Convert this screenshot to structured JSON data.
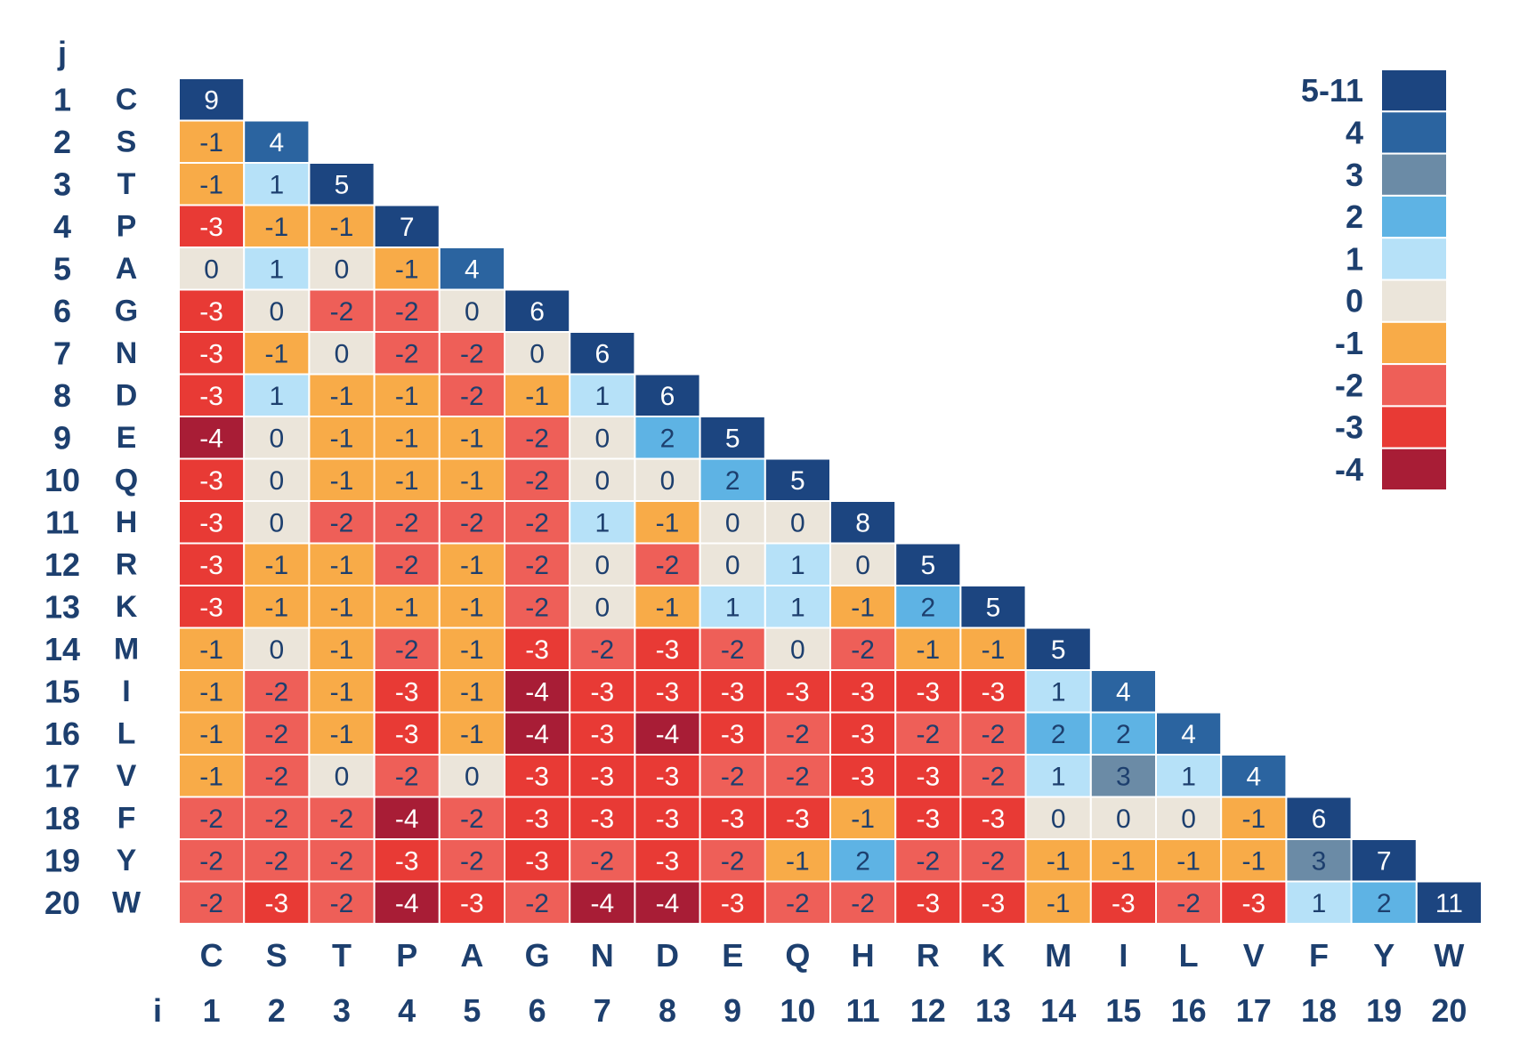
{
  "chart_data": {
    "type": "heatmap",
    "j_axis_title": "j",
    "i_axis_title": "i",
    "amino_acids": [
      "C",
      "S",
      "T",
      "P",
      "A",
      "G",
      "N",
      "D",
      "E",
      "Q",
      "H",
      "R",
      "K",
      "M",
      "I",
      "L",
      "V",
      "F",
      "Y",
      "W"
    ],
    "indices": [
      "1",
      "2",
      "3",
      "4",
      "5",
      "6",
      "7",
      "8",
      "9",
      "10",
      "11",
      "12",
      "13",
      "14",
      "15",
      "16",
      "17",
      "18",
      "19",
      "20"
    ],
    "matrix": [
      [
        9
      ],
      [
        -1,
        4
      ],
      [
        -1,
        1,
        5
      ],
      [
        -3,
        -1,
        -1,
        7
      ],
      [
        0,
        1,
        0,
        -1,
        4
      ],
      [
        -3,
        0,
        -2,
        -2,
        0,
        6
      ],
      [
        -3,
        -1,
        0,
        -2,
        -2,
        0,
        6
      ],
      [
        -3,
        1,
        -1,
        -1,
        -2,
        -1,
        1,
        6
      ],
      [
        -4,
        0,
        -1,
        -1,
        -1,
        -2,
        0,
        2,
        5
      ],
      [
        -3,
        0,
        -1,
        -1,
        -1,
        -2,
        0,
        0,
        2,
        5
      ],
      [
        -3,
        0,
        -2,
        -2,
        -2,
        -2,
        1,
        -1,
        0,
        0,
        8
      ],
      [
        -3,
        -1,
        -1,
        -2,
        -1,
        -2,
        0,
        -2,
        0,
        1,
        0,
        5
      ],
      [
        -3,
        -1,
        -1,
        -1,
        -1,
        -2,
        0,
        -1,
        1,
        1,
        -1,
        2,
        5
      ],
      [
        -1,
        0,
        -1,
        -2,
        -1,
        -3,
        -2,
        -3,
        -2,
        0,
        -2,
        -1,
        -1,
        5
      ],
      [
        -1,
        -2,
        -1,
        -3,
        -1,
        -4,
        -3,
        -3,
        -3,
        -3,
        -3,
        -3,
        -3,
        1,
        4
      ],
      [
        -1,
        -2,
        -1,
        -3,
        -1,
        -4,
        -3,
        -4,
        -3,
        -2,
        -3,
        -2,
        -2,
        2,
        2,
        4
      ],
      [
        -1,
        -2,
        0,
        -2,
        0,
        -3,
        -3,
        -3,
        -2,
        -2,
        -3,
        -3,
        -2,
        1,
        3,
        1,
        4
      ],
      [
        -2,
        -2,
        -2,
        -4,
        -2,
        -3,
        -3,
        -3,
        -3,
        -3,
        -1,
        -3,
        -3,
        0,
        0,
        0,
        -1,
        6
      ],
      [
        -2,
        -2,
        -2,
        -3,
        -2,
        -3,
        -2,
        -3,
        -2,
        -1,
        2,
        -2,
        -2,
        -1,
        -1,
        -1,
        -1,
        3,
        7
      ],
      [
        -2,
        -3,
        -2,
        -4,
        -3,
        -2,
        -4,
        -4,
        -3,
        -2,
        -2,
        -3,
        -3,
        -1,
        -3,
        -2,
        -3,
        1,
        2,
        11
      ]
    ],
    "legend": [
      {
        "label": "5-11",
        "color": "#1c4580"
      },
      {
        "label": "4",
        "color": "#2b64a0"
      },
      {
        "label": "3",
        "color": "#6b8ba6"
      },
      {
        "label": "2",
        "color": "#5eb3e4"
      },
      {
        "label": "1",
        "color": "#b6e1f8"
      },
      {
        "label": "0",
        "color": "#ebe5da"
      },
      {
        "label": "-1",
        "color": "#f8ab48"
      },
      {
        "label": "-2",
        "color": "#ee5f58"
      },
      {
        "label": "-3",
        "color": "#e83a35"
      },
      {
        "label": "-4",
        "color": "#a81d36"
      }
    ],
    "legend_position": "top-right",
    "text_color_dark": "#1d3f6e"
  }
}
